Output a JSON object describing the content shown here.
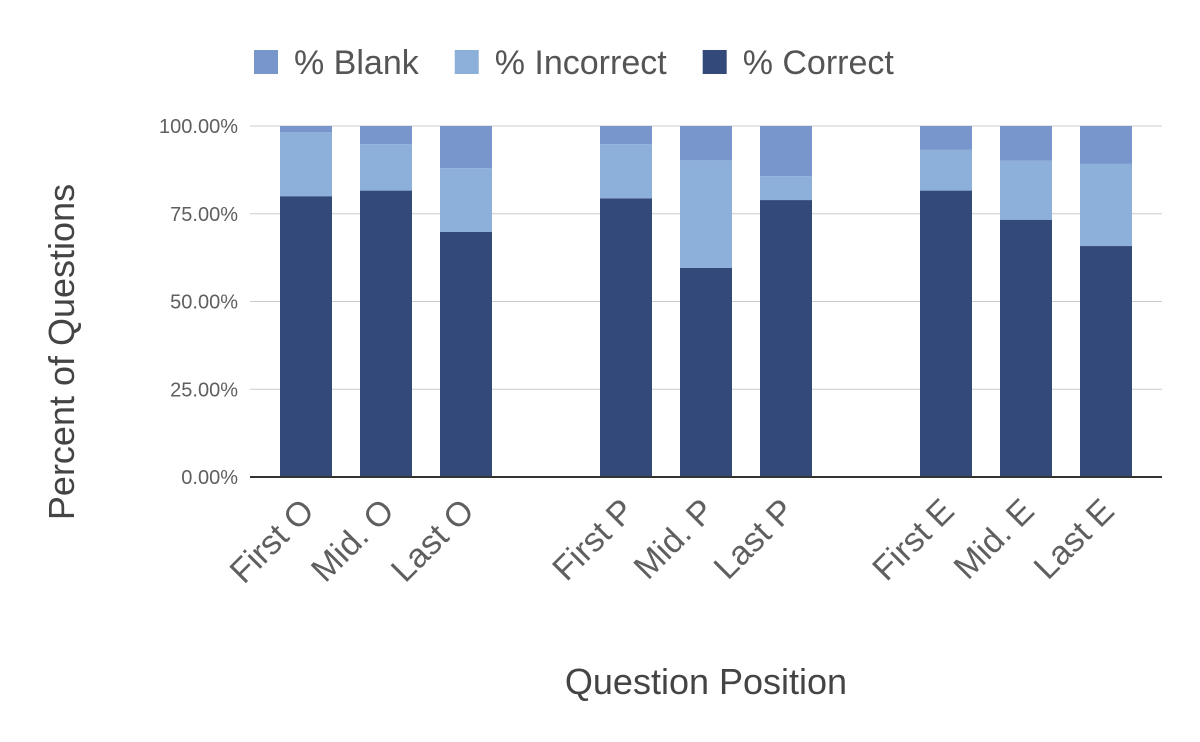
{
  "chart_data": {
    "type": "bar",
    "stacked": true,
    "title": "",
    "xlabel": "Question Position",
    "ylabel": "Percent of Questions",
    "ylim": [
      0,
      100
    ],
    "y_ticks": [
      "0.00%",
      "25.00%",
      "50.00%",
      "75.00%",
      "100.00%"
    ],
    "grid": true,
    "legend_position": "top",
    "categories": [
      "First O",
      "Mid. O",
      "Last O",
      "First P",
      "Mid. P",
      "Last P",
      "First E",
      "Mid. E",
      "Last E"
    ],
    "groups": [
      3,
      3,
      3
    ],
    "legend": [
      "% Blank",
      "% Incorrect",
      "% Correct"
    ],
    "series": [
      {
        "name": "% Correct",
        "color": "#33497a",
        "values": [
          80,
          81.6,
          69.8,
          79.4,
          59.6,
          78.9,
          81.6,
          73.3,
          65.8
        ]
      },
      {
        "name": "% Incorrect",
        "color": "#8db0da",
        "values": [
          18.2,
          13.2,
          18.2,
          15.4,
          30.6,
          6.8,
          11.6,
          16.8,
          23.4
        ]
      },
      {
        "name": "% Blank",
        "color": "#7895cc",
        "values": [
          1.8,
          5.2,
          12.0,
          5.2,
          9.8,
          14.3,
          6.8,
          9.9,
          10.8
        ]
      }
    ]
  }
}
